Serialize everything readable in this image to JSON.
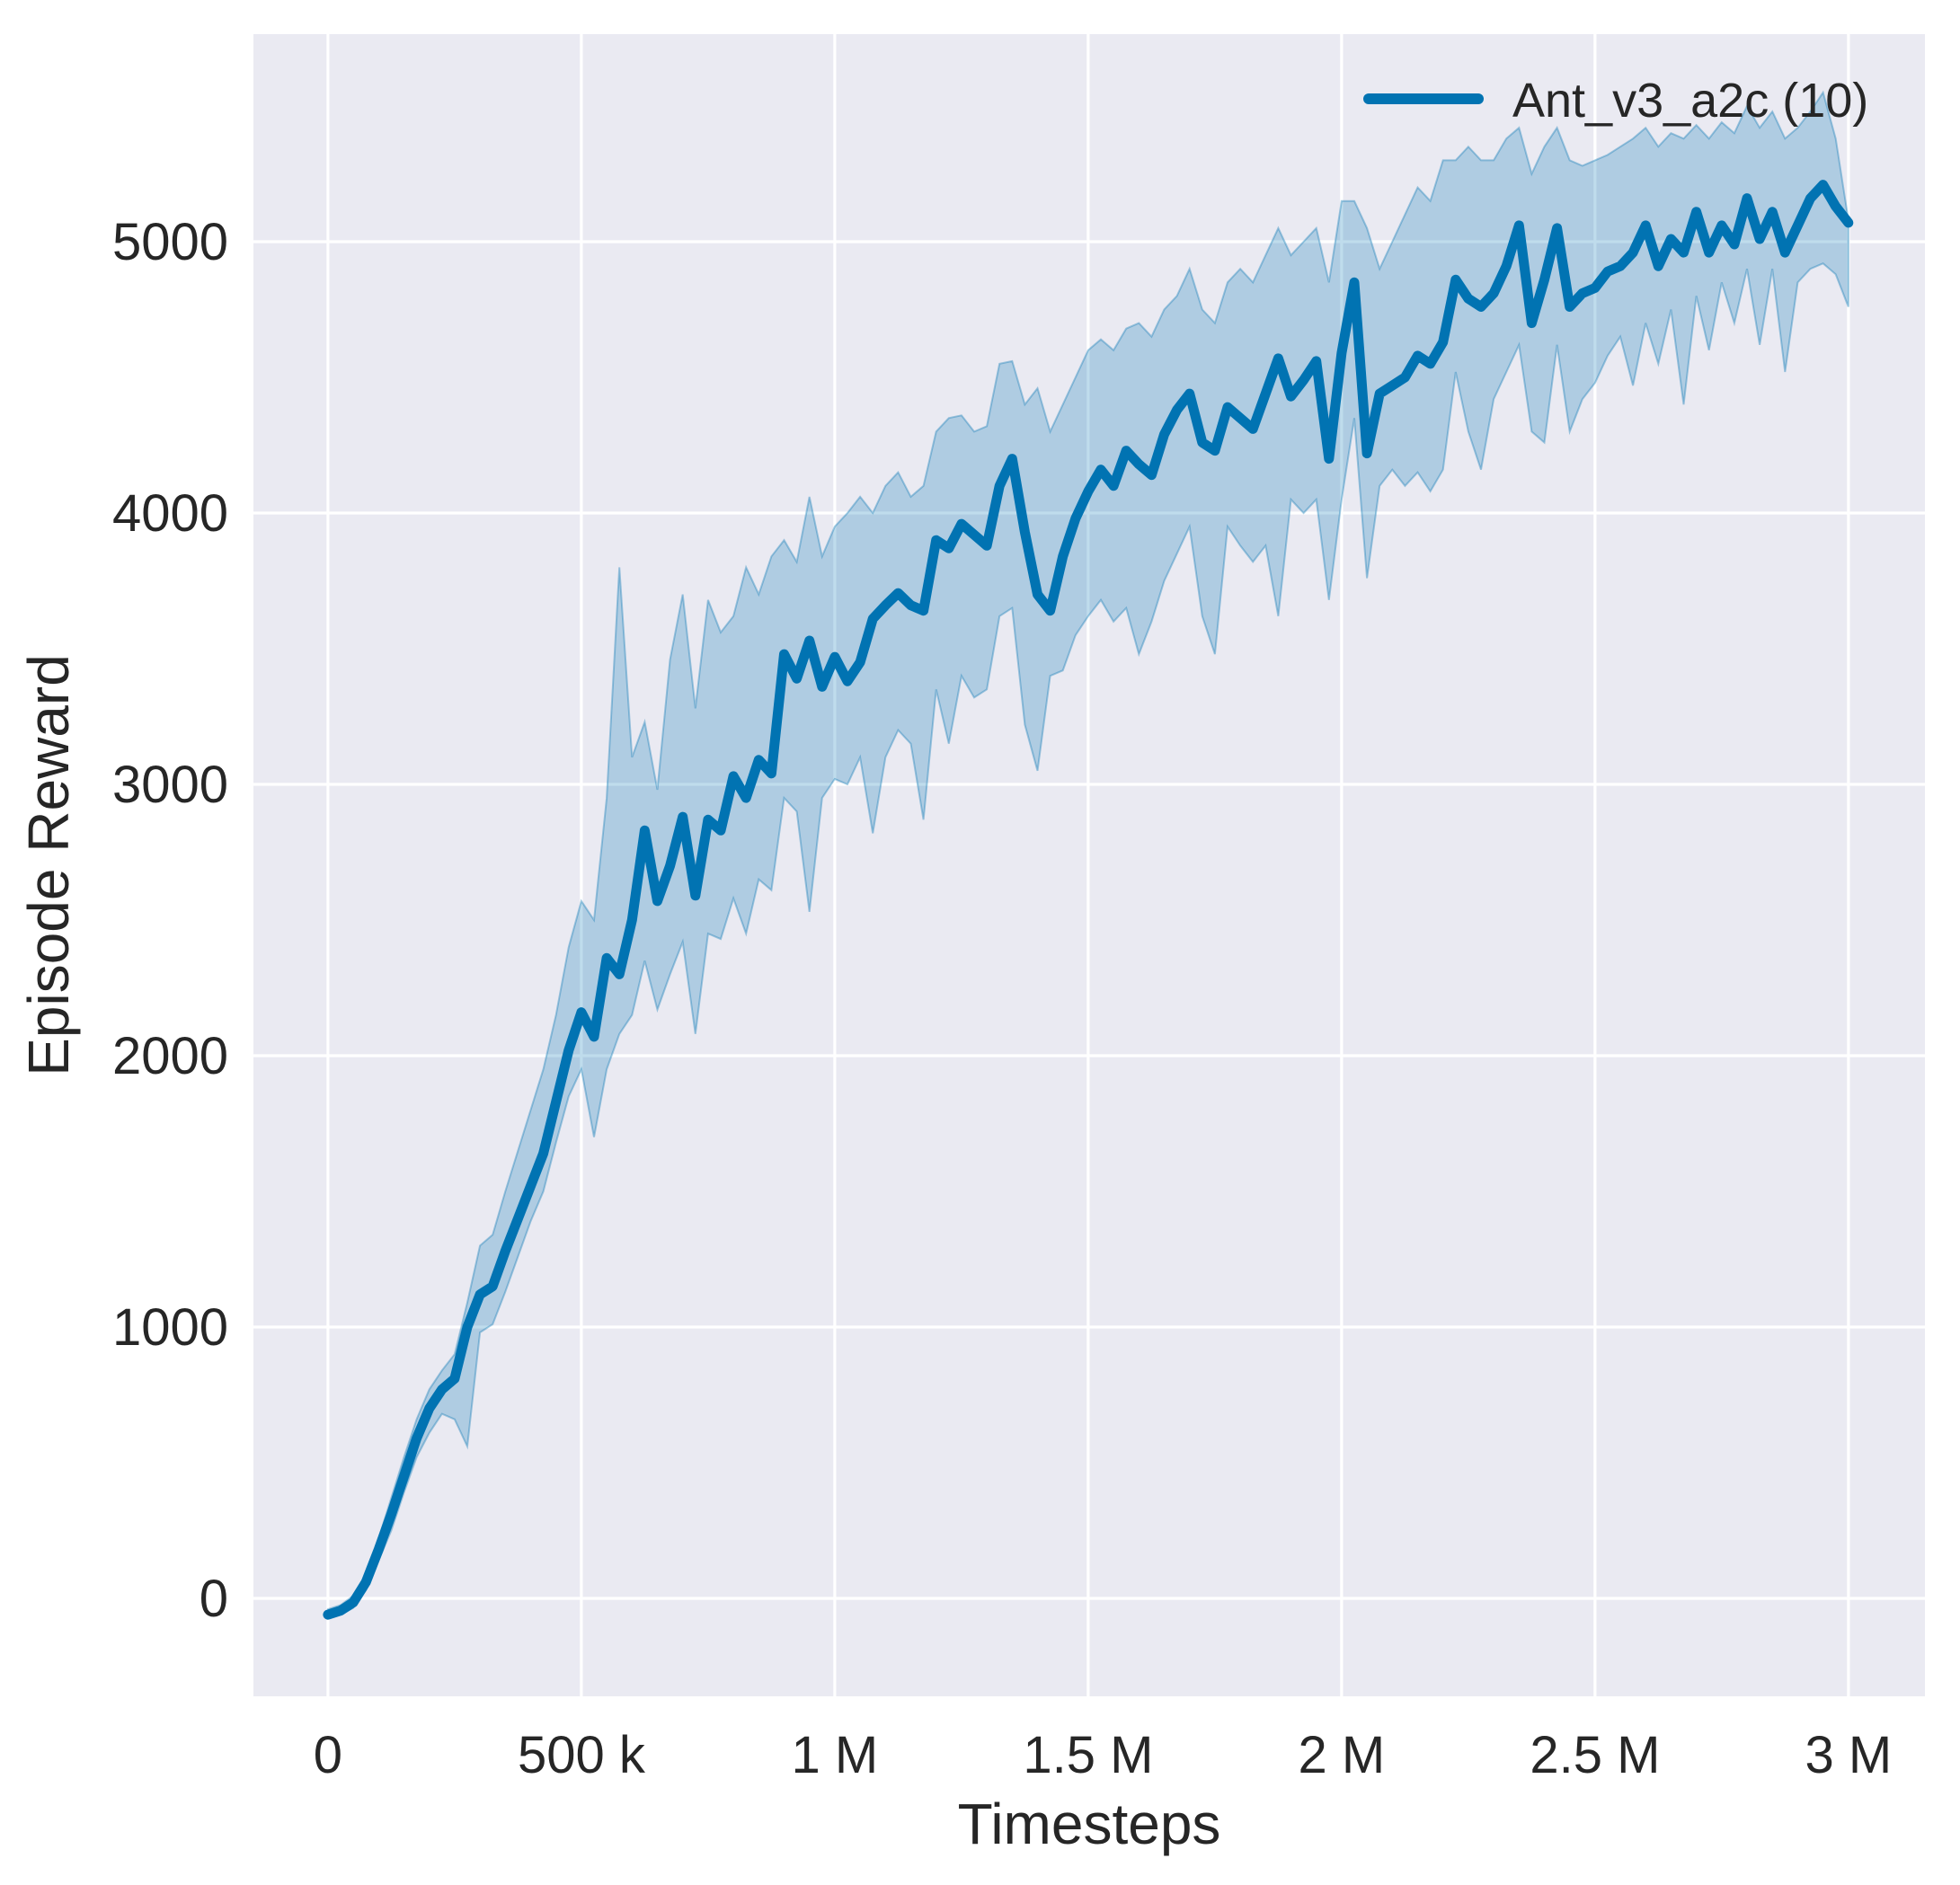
{
  "chart_data": {
    "type": "line",
    "title": "",
    "xlabel": "Timesteps",
    "ylabel": "Episode Reward",
    "legend_position": "upper right",
    "grid": true,
    "background_color": "#eaeaf2",
    "grid_color": "#ffffff",
    "text_color": "#262626",
    "xlim": [
      -147000,
      3151000
    ],
    "ylim": [
      -361,
      5765
    ],
    "x_ticks": [
      {
        "value": 0,
        "label": "0"
      },
      {
        "value": 500000,
        "label": "500 k"
      },
      {
        "value": 1000000,
        "label": "1 M"
      },
      {
        "value": 1500000,
        "label": "1.5 M"
      },
      {
        "value": 2000000,
        "label": "2 M"
      },
      {
        "value": 2500000,
        "label": "2.5 M"
      },
      {
        "value": 3000000,
        "label": "3 M"
      }
    ],
    "y_ticks": [
      {
        "value": 0,
        "label": "0"
      },
      {
        "value": 1000,
        "label": "1000"
      },
      {
        "value": 2000,
        "label": "2000"
      },
      {
        "value": 3000,
        "label": "3000"
      },
      {
        "value": 4000,
        "label": "4000"
      },
      {
        "value": 5000,
        "label": "5000"
      }
    ],
    "series": [
      {
        "name": "Ant_v3_a2c",
        "legend_label": "Ant_v3_a2c (10)",
        "color": "#0173b2",
        "band_fill_opacity": 0.25,
        "band_edge_opacity": 0.35,
        "x": [
          0,
          25000,
          50000,
          75000,
          100000,
          125000,
          150000,
          175000,
          200000,
          225000,
          250000,
          275000,
          300000,
          325000,
          350000,
          375000,
          400000,
          425000,
          450000,
          475000,
          500000,
          525000,
          550000,
          575000,
          600000,
          625000,
          650000,
          675000,
          700000,
          725000,
          750000,
          775000,
          800000,
          825000,
          850000,
          875000,
          900000,
          925000,
          950000,
          975000,
          1000000,
          1025000,
          1050000,
          1075000,
          1100000,
          1125000,
          1150000,
          1175000,
          1200000,
          1225000,
          1250000,
          1275000,
          1300000,
          1325000,
          1350000,
          1375000,
          1400000,
          1425000,
          1450000,
          1475000,
          1500000,
          1525000,
          1550000,
          1575000,
          1600000,
          1625000,
          1650000,
          1675000,
          1700000,
          1725000,
          1750000,
          1775000,
          1800000,
          1825000,
          1850000,
          1875000,
          1900000,
          1925000,
          1950000,
          1975000,
          2000000,
          2025000,
          2050000,
          2075000,
          2100000,
          2125000,
          2150000,
          2175000,
          2200000,
          2225000,
          2250000,
          2275000,
          2300000,
          2325000,
          2350000,
          2375000,
          2400000,
          2425000,
          2450000,
          2475000,
          2500000,
          2525000,
          2550000,
          2575000,
          2600000,
          2625000,
          2650000,
          2675000,
          2700000,
          2725000,
          2750000,
          2775000,
          2800000,
          2825000,
          2850000,
          2875000,
          2900000,
          2925000,
          2950000,
          2975000,
          3000000
        ],
        "mean": [
          -60,
          -45,
          -15,
          60,
          180,
          310,
          450,
          590,
          700,
          770,
          810,
          1000,
          1120,
          1150,
          1280,
          1400,
          1520,
          1640,
          1830,
          2020,
          2160,
          2070,
          2360,
          2300,
          2500,
          2830,
          2570,
          2700,
          2880,
          2590,
          2870,
          2830,
          3030,
          2950,
          3090,
          3040,
          3480,
          3390,
          3530,
          3360,
          3470,
          3380,
          3450,
          3610,
          3660,
          3705,
          3660,
          3640,
          3900,
          3870,
          3960,
          3920,
          3880,
          4100,
          4200,
          3930,
          3700,
          3640,
          3840,
          3980,
          4080,
          4160,
          4100,
          4230,
          4180,
          4140,
          4290,
          4380,
          4440,
          4260,
          4230,
          4390,
          4350,
          4310,
          4440,
          4570,
          4430,
          4490,
          4560,
          4200,
          4590,
          4850,
          4220,
          4440,
          4470,
          4500,
          4580,
          4550,
          4630,
          4860,
          4790,
          4760,
          4810,
          4910,
          5060,
          4700,
          4860,
          5050,
          4760,
          4810,
          4830,
          4890,
          4910,
          4960,
          5060,
          4910,
          5010,
          4960,
          5110,
          4960,
          5060,
          4990,
          5160,
          5010,
          5110,
          4960,
          5060,
          5160,
          5210,
          5130,
          5070
        ],
        "lower": [
          -75,
          -60,
          -35,
          30,
          140,
          250,
          390,
          520,
          610,
          680,
          660,
          560,
          980,
          1010,
          1130,
          1260,
          1390,
          1500,
          1680,
          1850,
          1950,
          1700,
          1950,
          2080,
          2150,
          2350,
          2170,
          2300,
          2420,
          2080,
          2450,
          2430,
          2580,
          2450,
          2650,
          2610,
          2950,
          2900,
          2530,
          2950,
          3020,
          3000,
          3100,
          2820,
          3100,
          3200,
          3150,
          2870,
          3350,
          3150,
          3400,
          3320,
          3350,
          3620,
          3650,
          3220,
          3050,
          3400,
          3420,
          3550,
          3620,
          3680,
          3600,
          3650,
          3480,
          3600,
          3750,
          3850,
          3950,
          3620,
          3480,
          3950,
          3880,
          3820,
          3880,
          3620,
          4050,
          4000,
          4050,
          3680,
          4050,
          4350,
          3760,
          4100,
          4160,
          4100,
          4150,
          4080,
          4160,
          4520,
          4300,
          4160,
          4420,
          4520,
          4620,
          4300,
          4260,
          4620,
          4300,
          4420,
          4480,
          4580,
          4650,
          4470,
          4700,
          4550,
          4750,
          4400,
          4800,
          4600,
          4850,
          4700,
          4900,
          4620,
          4900,
          4520,
          4850,
          4900,
          4920,
          4880,
          4760
        ],
        "upper": [
          -40,
          -25,
          10,
          90,
          220,
          370,
          520,
          660,
          770,
          840,
          900,
          1090,
          1300,
          1340,
          1500,
          1650,
          1800,
          1950,
          2150,
          2400,
          2570,
          2500,
          2950,
          3800,
          3100,
          3230,
          2980,
          3460,
          3700,
          3280,
          3680,
          3560,
          3620,
          3800,
          3700,
          3840,
          3900,
          3820,
          4060,
          3840,
          3950,
          4000,
          4060,
          4000,
          4100,
          4150,
          4060,
          4100,
          4300,
          4350,
          4360,
          4300,
          4320,
          4550,
          4560,
          4400,
          4460,
          4300,
          4400,
          4500,
          4600,
          4640,
          4600,
          4680,
          4700,
          4650,
          4750,
          4800,
          4900,
          4750,
          4700,
          4850,
          4900,
          4850,
          4950,
          5050,
          4950,
          5000,
          5050,
          4850,
          5150,
          5150,
          5050,
          4900,
          5000,
          5100,
          5200,
          5150,
          5300,
          5300,
          5350,
          5300,
          5300,
          5380,
          5420,
          5250,
          5350,
          5420,
          5300,
          5280,
          5300,
          5320,
          5350,
          5380,
          5420,
          5350,
          5400,
          5380,
          5430,
          5380,
          5440,
          5400,
          5500,
          5420,
          5480,
          5380,
          5420,
          5480,
          5550,
          5380,
          5080
        ]
      }
    ]
  }
}
